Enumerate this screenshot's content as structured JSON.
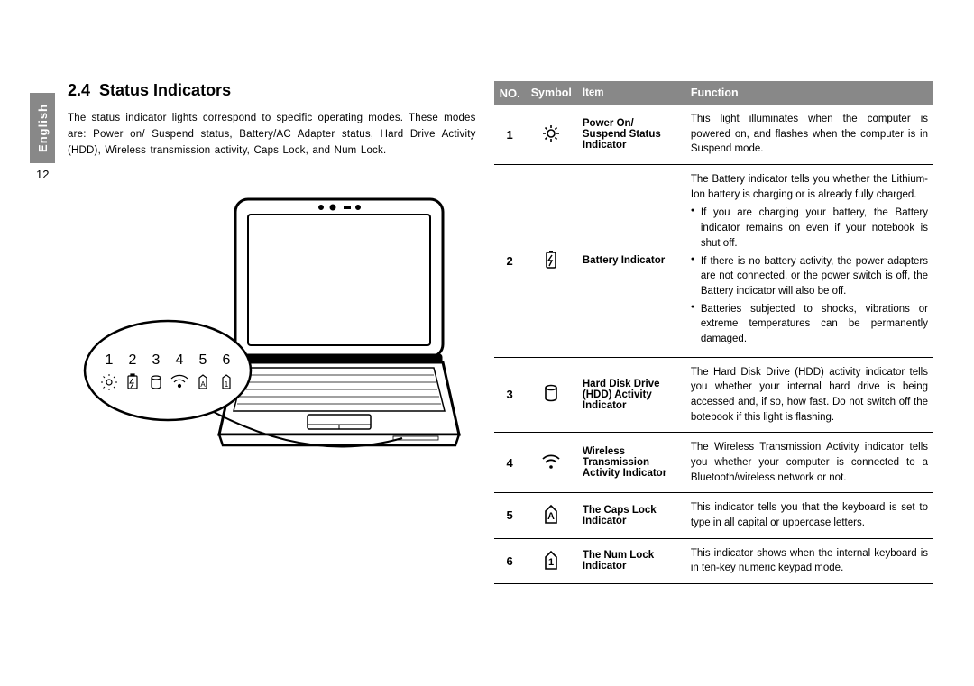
{
  "sideTab": "English",
  "pageNumber": "12",
  "section": {
    "number": "2.4",
    "title": "Status Indicators"
  },
  "intro": "The status indicator lights correspond to specific operating modes. These modes are: Power on/ Suspend status, Battery/AC Adapter status, Hard Drive Activity (HDD), Wireless transmission activity, Caps Lock, and Num Lock.",
  "callout": {
    "numbers": [
      "1",
      "2",
      "3",
      "4",
      "5",
      "6"
    ]
  },
  "tableHeaders": {
    "no": "NO.",
    "symbol": "Symbol",
    "item": "Item",
    "function": "Function"
  },
  "rows": [
    {
      "no": "1",
      "symbol": "power",
      "item": "Power On/ Suspend Status Indicator",
      "function": "This light illuminates when the computer is powered on, and flashes when the computer is in Suspend mode."
    },
    {
      "no": "2",
      "symbol": "battery",
      "item": "Battery Indicator",
      "function": "The Battery indicator tells you whether the Lithium-Ion battery is charging or is already fully charged.",
      "bullets": [
        "If you are charging your battery, the Battery indicator remains on even if your notebook is shut off.",
        "If there is no battery activity, the power adapters are not connected, or the power switch is off, the Battery indicator will also be off.",
        "Batteries subjected to shocks, vibrations or extreme temperatures can be permanently damaged."
      ]
    },
    {
      "no": "3",
      "symbol": "hdd",
      "item": "Hard Disk Drive (HDD) Activity Indicator",
      "function": "The Hard Disk Drive (HDD) activity indicator tells you whether your internal hard drive is being accessed and, if so, how fast. Do not switch off the botebook if this light is flashing."
    },
    {
      "no": "4",
      "symbol": "wireless",
      "item": "Wireless Transmission Activity Indicator",
      "function": "The Wireless Transmission Activity indicator tells you whether your computer is connected to a Bluetooth/wireless network or not."
    },
    {
      "no": "5",
      "symbol": "caps",
      "item": "The Caps Lock Indicator",
      "function": "This indicator tells you that the keyboard is set to type in all capital or uppercase letters."
    },
    {
      "no": "6",
      "symbol": "num",
      "item": "The Num Lock Indicator",
      "function": "This indicator shows when the internal keyboard is in ten-key numeric keypad mode."
    }
  ],
  "colors": {
    "tabBg": "#888888",
    "headerBg": "#888888",
    "border": "#000000"
  }
}
